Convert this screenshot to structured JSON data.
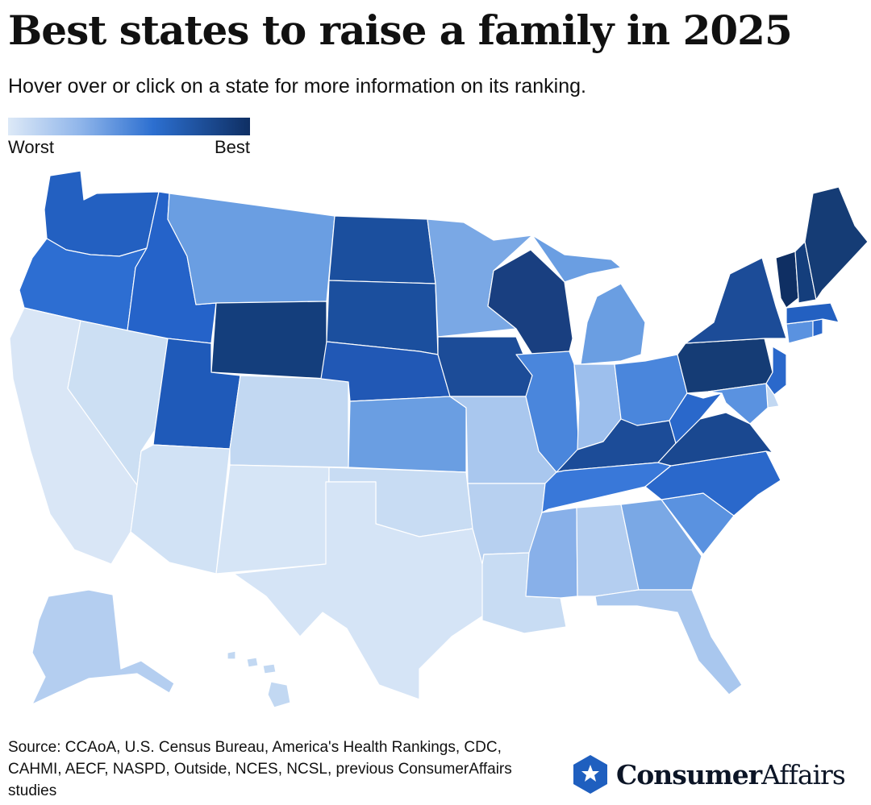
{
  "title": "Best states to raise a family in 2025",
  "subtitle": "Hover over or click on a state for more information on its ranking.",
  "legend": {
    "min_label": "Worst",
    "max_label": "Best",
    "colors": [
      "#dde9f7",
      "#8fb5ea",
      "#2c6fd0",
      "#0f2f63"
    ]
  },
  "source": "Source: CCAoA, U.S. Census Bureau, America's Health Rankings, CDC, CAHMI, AECF, NASPD, Outside, NCES, NCSL, previous ConsumerAffairs studies",
  "brand": {
    "bold": "Consumer",
    "regular": "Affairs",
    "icon": "star-hexagon-icon",
    "color": "#1f5fbf"
  },
  "states": {
    "WA": "#2360c1",
    "OR": "#2d6ed2",
    "CA": "#d9e6f6",
    "NV": "#ccdff3",
    "ID": "#2563c9",
    "MT": "#6a9ee2",
    "WY": "#143e7c",
    "UT": "#1f5ab9",
    "AZ": "#d1e2f5",
    "CO": "#c2d8f2",
    "NM": "#d6e5f6",
    "ND": "#1b4f9e",
    "SD": "#1b4f9e",
    "NE": "#2158b5",
    "KS": "#6a9ee2",
    "OK": "#c8dcf3",
    "TX": "#d5e4f6",
    "MN": "#7aa8e5",
    "IA": "#1c4c98",
    "MO": "#a9c7ee",
    "AR": "#b7d0f0",
    "LA": "#c8dcf3",
    "WI": "#193f80",
    "IL": "#4a86dc",
    "MI": "#6a9ee2",
    "IN": "#9dbfed",
    "OH": "#4a86dc",
    "KY": "#1c4c98",
    "TN": "#3978d9",
    "MS": "#88b0e9",
    "AL": "#b4cef0",
    "GA": "#7aa8e5",
    "FL": "#a9c7ee",
    "SC": "#5a92e0",
    "NC": "#2a68cb",
    "VA": "#1a4890",
    "WV": "#2a68cb",
    "PA": "#153c75",
    "NY": "#1c4c98",
    "NJ": "#2a68cb",
    "DE": "#c2d8f2",
    "MD": "#5a92e0",
    "CT": "#5a92e0",
    "RI": "#2a68cb",
    "MA": "#2360c1",
    "VT": "#0f2f63",
    "NH": "#143e7c",
    "ME": "#153c75",
    "AK": "#b4cef0",
    "HI": "#c2d8f2"
  }
}
